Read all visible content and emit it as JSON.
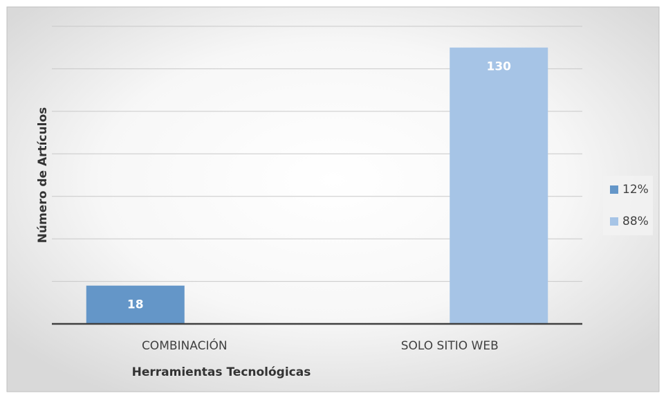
{
  "chart_data": {
    "type": "bar",
    "categories": [
      "COMBINACIÓN",
      "SOLO SITIO WEB"
    ],
    "series": [
      {
        "name": "12%",
        "color": "#6496c8",
        "values": [
          18,
          null
        ]
      },
      {
        "name": "88%",
        "color": "#a6c4e6",
        "values": [
          null,
          130
        ]
      }
    ],
    "xlabel": "Herramientas Tecnológicas",
    "ylabel": "Número de Artículos",
    "ylim": [
      0,
      140
    ],
    "yticks": [
      0,
      20,
      40,
      60,
      80,
      100,
      120,
      140
    ],
    "grid": true,
    "legend": "right"
  }
}
